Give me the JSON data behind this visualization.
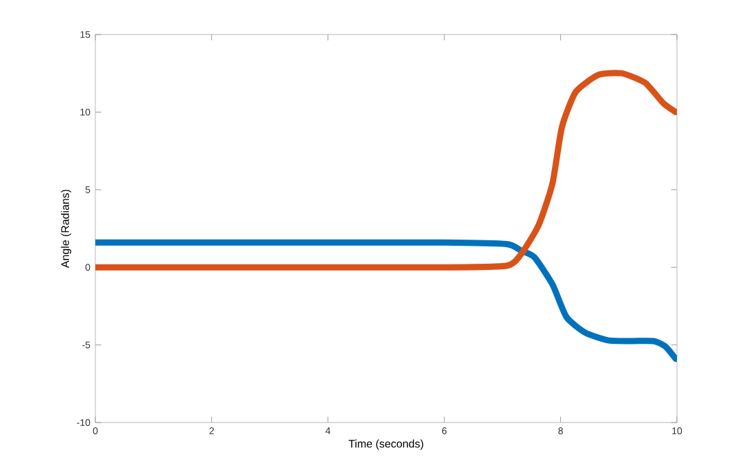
{
  "chart_data": {
    "type": "line",
    "xlabel": "Time (seconds)",
    "ylabel": "Angle (Radians)",
    "xlim": [
      0,
      10
    ],
    "ylim": [
      -10,
      15
    ],
    "xticks": [
      0,
      2,
      4,
      6,
      8,
      10
    ],
    "yticks": [
      -10,
      -5,
      0,
      5,
      10,
      15
    ],
    "series": [
      {
        "color": "#0072bd",
        "x": [
          0,
          2,
          4,
          6,
          7.07,
          7.31,
          7.55,
          7.86,
          8.1,
          8.42,
          8.81,
          9.2,
          9.6,
          9.8,
          9.98
        ],
        "values": [
          1.6,
          1.6,
          1.6,
          1.6,
          1.5,
          1.1,
          0.65,
          -1.1,
          -3.2,
          -4.2,
          -4.7,
          -4.75,
          -4.75,
          -5.1,
          -5.9
        ]
      },
      {
        "color": "#d95319",
        "x": [
          0,
          2,
          4,
          6,
          7.07,
          7.31,
          7.62,
          7.86,
          8.02,
          8.26,
          8.65,
          9.05,
          9.45,
          9.76,
          9.98
        ],
        "values": [
          0,
          0,
          0,
          0,
          0.1,
          0.8,
          2.7,
          5.4,
          9.0,
          11.3,
          12.4,
          12.5,
          11.9,
          10.6,
          10.0
        ]
      }
    ]
  }
}
